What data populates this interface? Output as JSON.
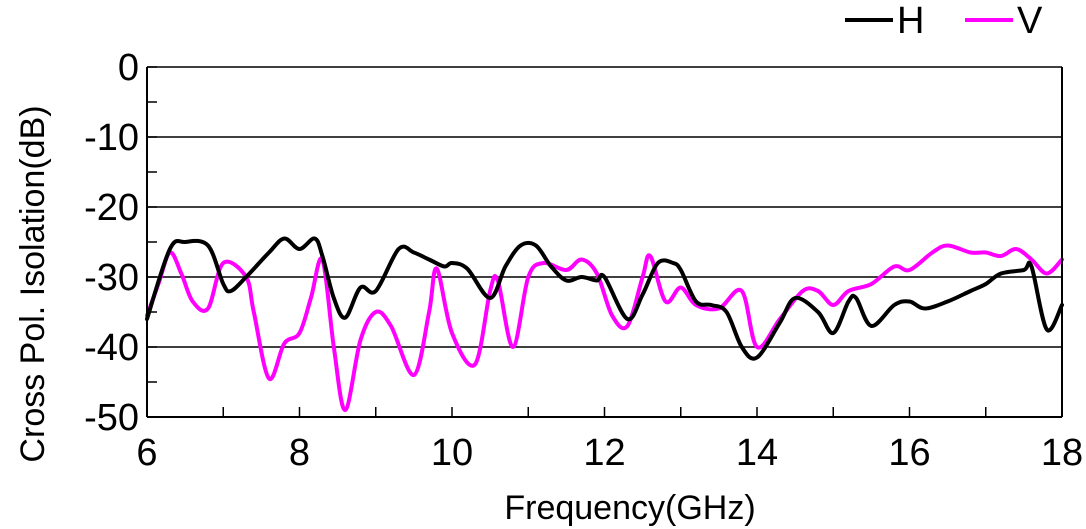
{
  "chart_data": {
    "type": "line",
    "title": "",
    "xlabel": "Frequency(GHz)",
    "ylabel": "Cross Pol. Isolation(dB)",
    "xlim": [
      6,
      18
    ],
    "ylim": [
      -50,
      0
    ],
    "xticks": [
      6,
      8,
      10,
      12,
      14,
      16,
      18
    ],
    "yticks": [
      0,
      -10,
      -20,
      -30,
      -40,
      -50
    ],
    "grid": "horizontal",
    "legend": "top-right",
    "series": [
      {
        "name": "H",
        "color": "#000000",
        "x": [
          6.0,
          6.3,
          6.5,
          6.8,
          7.0,
          7.1,
          7.3,
          7.6,
          7.8,
          8.0,
          8.2,
          8.3,
          8.45,
          8.6,
          8.8,
          9.0,
          9.3,
          9.5,
          9.7,
          9.9,
          10.0,
          10.2,
          10.5,
          10.7,
          10.9,
          11.1,
          11.3,
          11.5,
          11.7,
          11.9,
          12.0,
          12.3,
          12.5,
          12.7,
          12.9,
          13.0,
          13.2,
          13.4,
          13.6,
          13.8,
          14.0,
          14.3,
          14.5,
          14.8,
          15.0,
          15.2,
          15.3,
          15.5,
          15.8,
          16.0,
          16.2,
          16.5,
          16.8,
          17.0,
          17.2,
          17.5,
          17.6,
          17.8,
          18.0
        ],
        "values": [
          -36,
          -26,
          -25,
          -25.5,
          -31,
          -32,
          -30,
          -26.5,
          -24.5,
          -26,
          -24.5,
          -27,
          -33,
          -35.8,
          -31.5,
          -32,
          -26,
          -26.5,
          -27.5,
          -28.5,
          -28,
          -28.8,
          -33,
          -28.5,
          -25.5,
          -25.5,
          -28.5,
          -30.5,
          -30,
          -30.5,
          -30,
          -36,
          -32.5,
          -28,
          -28,
          -29,
          -33.5,
          -34,
          -35,
          -40,
          -41.5,
          -36.5,
          -33,
          -35,
          -38,
          -33.5,
          -33,
          -37,
          -34,
          -33.5,
          -34.5,
          -33.5,
          -32,
          -31,
          -29.5,
          -29,
          -28.5,
          -37.5,
          -34
        ]
      },
      {
        "name": "V",
        "color": "#ff00ff",
        "x": [
          6.0,
          6.15,
          6.3,
          6.45,
          6.6,
          6.8,
          7.0,
          7.3,
          7.4,
          7.6,
          7.8,
          8.0,
          8.15,
          8.3,
          8.45,
          8.6,
          8.8,
          9.0,
          9.2,
          9.5,
          9.7,
          9.8,
          10.0,
          10.3,
          10.5,
          10.6,
          10.8,
          11.0,
          11.2,
          11.5,
          11.7,
          11.9,
          12.1,
          12.3,
          12.5,
          12.6,
          12.8,
          13.0,
          13.2,
          13.5,
          13.8,
          14.0,
          14.3,
          14.6,
          14.8,
          15.0,
          15.2,
          15.5,
          15.8,
          16.0,
          16.3,
          16.5,
          16.8,
          17.0,
          17.2,
          17.4,
          17.6,
          17.8,
          18.0
        ],
        "values": [
          -35.5,
          -31,
          -26.5,
          -29.5,
          -33.5,
          -34.5,
          -28,
          -30,
          -35,
          -44.5,
          -39.5,
          -38,
          -33,
          -27.5,
          -40,
          -49,
          -39,
          -35,
          -37,
          -44,
          -35,
          -28.8,
          -38,
          -42.5,
          -32,
          -30.5,
          -40,
          -30,
          -28,
          -29,
          -27.5,
          -29.5,
          -35.5,
          -37,
          -30,
          -27,
          -33.5,
          -31.5,
          -34,
          -34.5,
          -32,
          -40,
          -36,
          -32,
          -32,
          -34,
          -32,
          -31,
          -28.5,
          -29,
          -26.5,
          -25.5,
          -26.5,
          -26.5,
          -27,
          -26,
          -27.5,
          -29.5,
          -27.5
        ]
      }
    ]
  }
}
